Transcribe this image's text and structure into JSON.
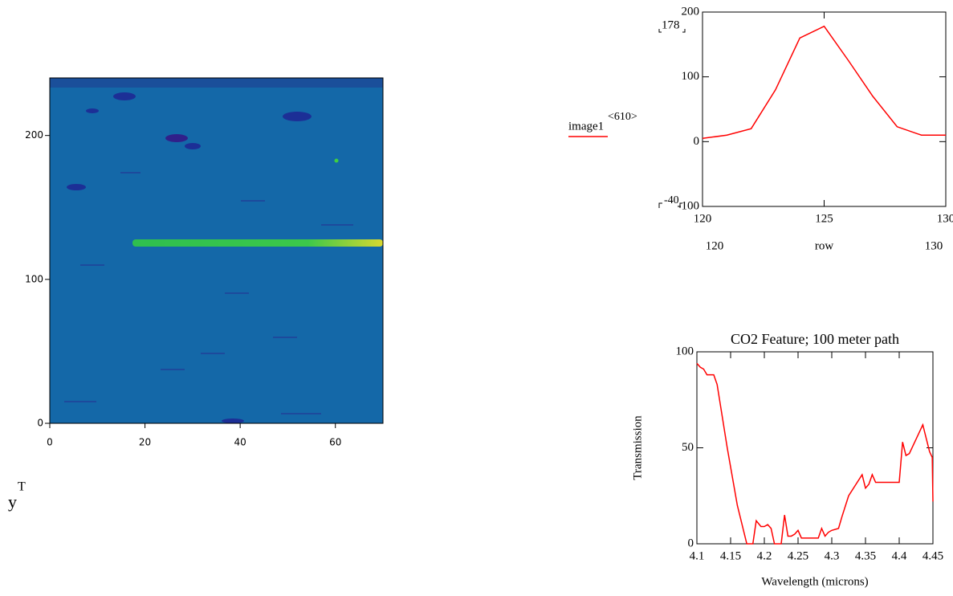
{
  "chart_data": [
    {
      "type": "heatmap",
      "xlim": [
        0,
        70
      ],
      "ylim": [
        0,
        240
      ],
      "xticks": [
        0,
        20,
        40,
        60
      ],
      "yticks": [
        0,
        100,
        200
      ],
      "label": {
        "base": "y",
        "superscript": "T"
      }
    },
    {
      "type": "line",
      "xlim": [
        120,
        130
      ],
      "ylim": [
        -100,
        200
      ],
      "xticks": [
        120,
        125,
        130
      ],
      "yticks": [
        -100,
        0,
        100,
        200
      ],
      "xlabel": "row",
      "range_markers": [
        178,
        -40
      ],
      "x": [
        120,
        121,
        122,
        123,
        124,
        125,
        126,
        127,
        128,
        129,
        130
      ],
      "series": [
        {
          "name": "image1",
          "name_superscript": "<610>",
          "color": "#ff0000",
          "values": [
            5,
            10,
            20,
            80,
            160,
            178,
            125,
            70,
            23,
            10,
            10
          ]
        }
      ]
    },
    {
      "type": "line",
      "title": "CO2 Feature; 100 meter path",
      "xlabel": "Wavelength (microns)",
      "ylabel": "Transmission",
      "xlim": [
        4.1,
        4.45
      ],
      "ylim": [
        0,
        100
      ],
      "xticks": [
        4.1,
        4.15,
        4.2,
        4.25,
        4.3,
        4.35,
        4.4,
        4.45
      ],
      "yticks": [
        0,
        50,
        100
      ],
      "x": [
        4.1,
        4.105,
        4.11,
        4.115,
        4.125,
        4.13,
        4.145,
        4.16,
        4.174,
        4.183,
        4.188,
        4.195,
        4.2,
        4.205,
        4.21,
        4.215,
        4.225,
        4.23,
        4.235,
        4.24,
        4.245,
        4.25,
        4.255,
        4.265,
        4.275,
        4.28,
        4.285,
        4.29,
        4.295,
        4.3,
        4.31,
        4.315,
        4.325,
        4.345,
        4.35,
        4.355,
        4.36,
        4.365,
        4.385,
        4.4,
        4.405,
        4.41,
        4.415,
        4.435,
        4.445,
        4.449,
        4.45
      ],
      "series": [
        {
          "color": "#ff0000",
          "values": [
            94,
            92,
            91,
            88,
            88,
            83,
            50,
            20,
            0,
            0,
            12,
            9,
            9,
            10,
            8,
            0,
            0,
            15,
            4,
            4,
            5,
            7,
            3,
            3,
            3,
            3,
            8,
            4,
            6,
            7,
            8,
            14,
            25,
            36,
            29,
            31,
            36,
            32,
            32,
            32,
            53,
            46,
            47,
            62,
            48,
            45,
            22
          ]
        }
      ]
    }
  ]
}
